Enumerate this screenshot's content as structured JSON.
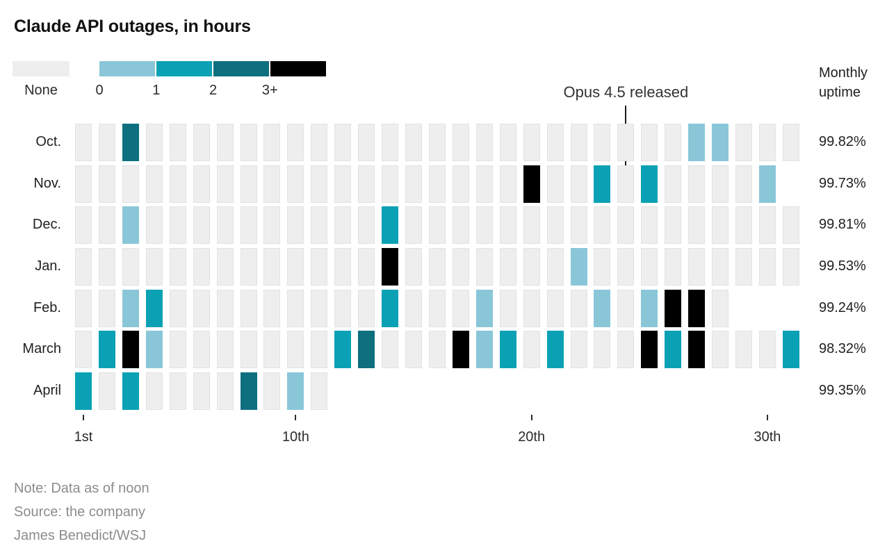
{
  "title": "Claude API outages, in hours",
  "uptime_column_header": "Monthly uptime",
  "notes": [
    "Note: Data as of noon",
    "Source: the company",
    "James Benedict/WSJ"
  ],
  "chart_data": {
    "type": "heatmap",
    "title": "Claude API outages, in hours",
    "unit": "hours of API outage per day",
    "x": "day of month",
    "x_ticks": [
      {
        "day": 1,
        "label": "1st"
      },
      {
        "day": 10,
        "label": "10th"
      },
      {
        "day": 20,
        "label": "20th"
      },
      {
        "day": 30,
        "label": "30th"
      }
    ],
    "legend": {
      "none": {
        "label": "None",
        "color": "#eeeeee"
      },
      "scale": [
        {
          "label": "0",
          "color": "#89c7d8"
        },
        {
          "label": "1",
          "color": "#0aa1b5"
        },
        {
          "label": "2",
          "color": "#0e6f7e"
        },
        {
          "label": "3+",
          "color": "#000000"
        }
      ]
    },
    "annotation": {
      "text": "Opus 4.5 released",
      "month": "Nov.",
      "day": 24
    },
    "rows": [
      {
        "month": "Oct.",
        "days_shown": 31,
        "uptime": "99.82%",
        "outages_by_day": {
          "3": "2",
          "27": "0",
          "28": "0"
        }
      },
      {
        "month": "Nov.",
        "days_shown": 30,
        "uptime": "99.73%",
        "outages_by_day": {
          "20": "3+",
          "23": "1",
          "25": "1",
          "30": "0"
        }
      },
      {
        "month": "Dec.",
        "days_shown": 31,
        "uptime": "99.81%",
        "outages_by_day": {
          "3": "0",
          "14": "1"
        }
      },
      {
        "month": "Jan.",
        "days_shown": 31,
        "uptime": "99.53%",
        "outages_by_day": {
          "14": "3+",
          "22": "0"
        }
      },
      {
        "month": "Feb.",
        "days_shown": 28,
        "uptime": "99.24%",
        "outages_by_day": {
          "3": "0",
          "4": "1",
          "14": "1",
          "18": "0",
          "23": "0",
          "25": "0",
          "26": "3+",
          "27": "3+"
        }
      },
      {
        "month": "March",
        "days_shown": 31,
        "uptime": "98.32%",
        "outages_by_day": {
          "2": "1",
          "3": "3+",
          "4": "0",
          "12": "1",
          "13": "2",
          "17": "3+",
          "18": "0",
          "19": "1",
          "21": "1",
          "25": "3+",
          "26": "1",
          "27": "3+",
          "31": "1"
        }
      },
      {
        "month": "April",
        "days_shown": 11,
        "uptime": "99.35%",
        "outages_by_day": {
          "1": "1",
          "3": "1",
          "8": "2",
          "10": "0"
        }
      }
    ]
  }
}
